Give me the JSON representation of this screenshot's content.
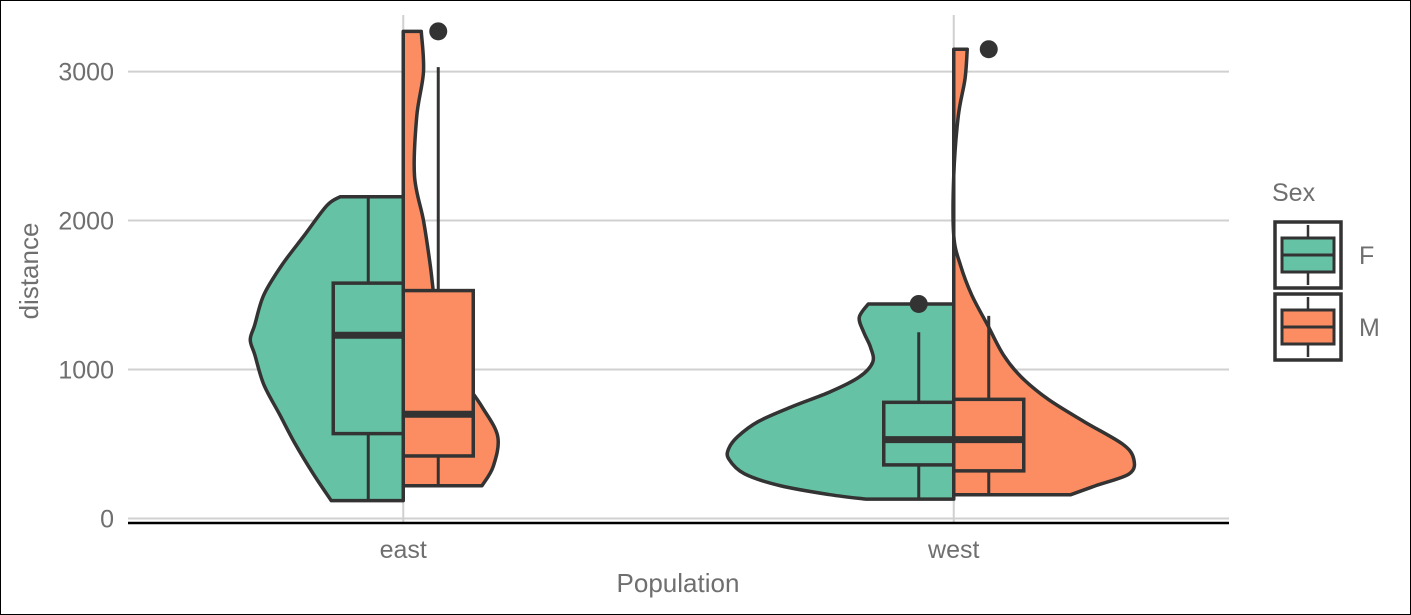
{
  "chart_data": {
    "type": "violin",
    "xlabel": "Population",
    "ylabel": "distance",
    "categories": [
      "east",
      "west"
    ],
    "ylim": [
      -30,
      3420
    ],
    "yticks": [
      0,
      1000,
      2000,
      3000
    ],
    "grid": true,
    "legend": {
      "title": "Sex",
      "position": "right",
      "items": [
        {
          "label": "F",
          "color": "#66c2a5"
        },
        {
          "label": "M",
          "color": "#fc8d62"
        }
      ]
    },
    "series": [
      {
        "name": "F",
        "color": "#66c2a5",
        "side": "left",
        "groups": [
          {
            "category": "east",
            "density": [
              [
                120,
                0.32
              ],
              [
                300,
                0.4
              ],
              [
                500,
                0.48
              ],
              [
                700,
                0.55
              ],
              [
                900,
                0.62
              ],
              [
                1100,
                0.66
              ],
              [
                1200,
                0.68
              ],
              [
                1300,
                0.66
              ],
              [
                1500,
                0.62
              ],
              [
                1700,
                0.54
              ],
              [
                1900,
                0.44
              ],
              [
                2100,
                0.34
              ],
              [
                2160,
                0.28
              ]
            ],
            "box": {
              "whisker_low": 120,
              "q1": 570,
              "median": 1230,
              "q3": 1580,
              "whisker_high": 2160
            },
            "outliers": []
          },
          {
            "category": "west",
            "density": [
              [
                130,
                0.39
              ],
              [
                160,
                0.55
              ],
              [
                220,
                0.77
              ],
              [
                300,
                0.93
              ],
              [
                400,
                1.0
              ],
              [
                470,
                1.0
              ],
              [
                550,
                0.96
              ],
              [
                650,
                0.87
              ],
              [
                750,
                0.72
              ],
              [
                850,
                0.55
              ],
              [
                950,
                0.42
              ],
              [
                1050,
                0.36
              ],
              [
                1150,
                0.37
              ],
              [
                1250,
                0.4
              ],
              [
                1350,
                0.42
              ],
              [
                1440,
                0.38
              ]
            ],
            "box": {
              "whisker_low": 130,
              "q1": 360,
              "median": 530,
              "q3": 780,
              "whisker_high": 1250
            },
            "outliers": [
              1440
            ]
          }
        ]
      },
      {
        "name": "M",
        "color": "#fc8d62",
        "side": "right",
        "groups": [
          {
            "category": "east",
            "density": [
              [
                220,
                0.35
              ],
              [
                350,
                0.4
              ],
              [
                550,
                0.42
              ],
              [
                750,
                0.35
              ],
              [
                950,
                0.26
              ],
              [
                1200,
                0.17
              ],
              [
                1450,
                0.14
              ],
              [
                1700,
                0.12
              ],
              [
                2000,
                0.09
              ],
              [
                2300,
                0.05
              ],
              [
                2700,
                0.06
              ],
              [
                3000,
                0.09
              ],
              [
                3270,
                0.08
              ]
            ],
            "box": {
              "whisker_low": 220,
              "q1": 420,
              "median": 700,
              "q3": 1530,
              "whisker_high": 3030
            },
            "outliers": [
              3270
            ]
          },
          {
            "category": "west",
            "density": [
              [
                160,
                0.52
              ],
              [
                220,
                0.63
              ],
              [
                300,
                0.78
              ],
              [
                400,
                0.8
              ],
              [
                500,
                0.75
              ],
              [
                650,
                0.58
              ],
              [
                800,
                0.42
              ],
              [
                950,
                0.3
              ],
              [
                1100,
                0.22
              ],
              [
                1300,
                0.15
              ],
              [
                1500,
                0.08
              ],
              [
                1700,
                0.03
              ],
              [
                1900,
                0.0
              ],
              [
                2300,
                0.0
              ],
              [
                2700,
                0.02
              ],
              [
                2950,
                0.05
              ],
              [
                3150,
                0.06
              ]
            ],
            "box": {
              "whisker_low": 160,
              "q1": 320,
              "median": 530,
              "q3": 800,
              "whisker_high": 1360
            },
            "outliers": [
              3150
            ]
          }
        ]
      }
    ]
  }
}
